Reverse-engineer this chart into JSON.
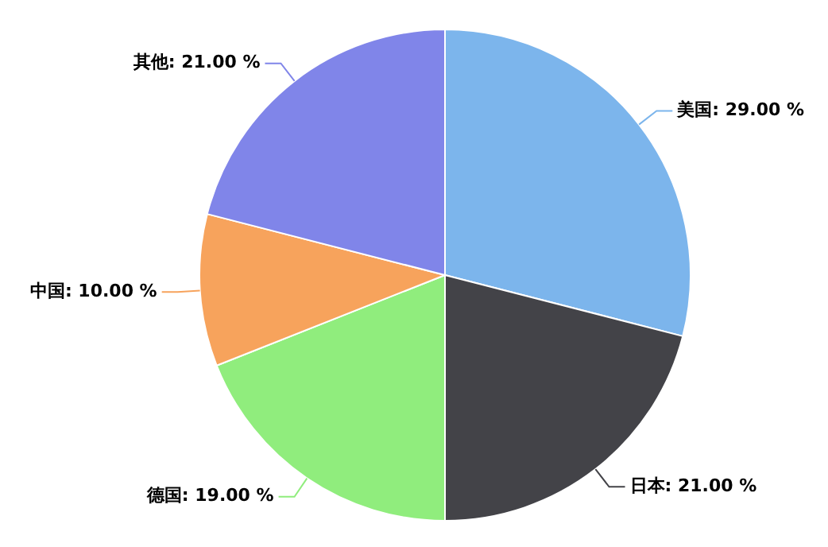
{
  "chart_data": {
    "type": "pie",
    "categories": [
      "美国",
      "日本",
      "德国",
      "中国",
      "其他"
    ],
    "values": [
      29,
      21,
      19,
      10,
      21
    ],
    "value_labels": [
      "29.00 %",
      "21.00 %",
      "19.00 %",
      "10.00 %",
      "21.00 %"
    ],
    "colors": [
      "#7cb5ec",
      "#434348",
      "#90ed7d",
      "#f7a35c",
      "#8085e9"
    ],
    "legend": false
  }
}
